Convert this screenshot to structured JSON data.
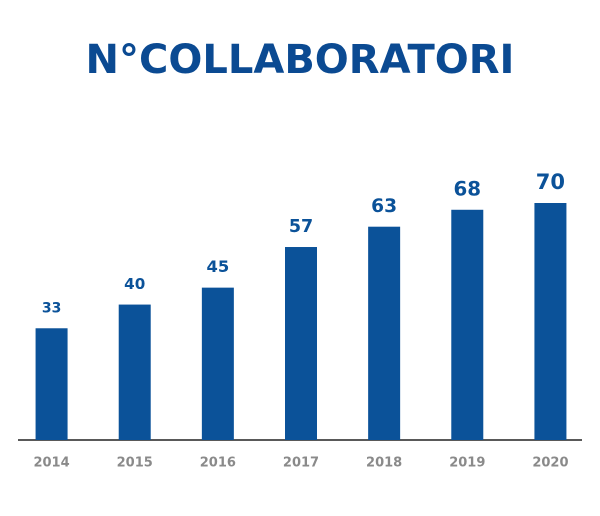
{
  "chart_data": {
    "type": "bar",
    "title": "N°COLLABORATORI",
    "categories": [
      "2014",
      "2015",
      "2016",
      "2017",
      "2018",
      "2019",
      "2020"
    ],
    "values": [
      33,
      40,
      45,
      57,
      63,
      68,
      70
    ],
    "color": "#0b5299",
    "ylim": [
      0,
      70
    ]
  }
}
